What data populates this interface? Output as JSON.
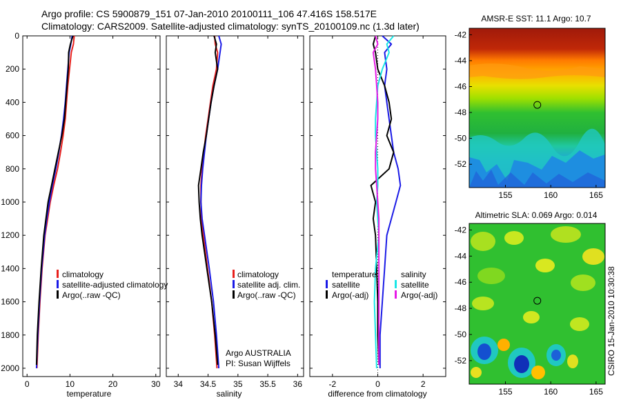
{
  "header": {
    "line1": "Argo profile: CS 5900879_151 07-Jan-2010 20100111_106 47.416S 158.517E",
    "line2": "Climatology: CARS2009. Satellite-adjusted climatology: synTS_20100109.nc (1.3d later)"
  },
  "side_note": "CSIRO 15-Jan-2010 10:30:38",
  "argo_note": {
    "line1": "Argo AUSTRALIA",
    "line2": "PI: Susan Wijffels"
  },
  "colors": {
    "climatology": "#e8201c",
    "satellite": "#1a1ae6",
    "argo": "#000000",
    "sat_salinity": "#19e6e6",
    "argo_salinity": "#e619e6"
  },
  "chart_data": [
    {
      "type": "line",
      "name": "temperature",
      "xlabel": "temperature",
      "xlim": [
        -1,
        31
      ],
      "ylim": [
        2050,
        0
      ],
      "xticks": [
        0,
        10,
        20,
        30
      ],
      "yticks": [
        0,
        200,
        400,
        600,
        800,
        1000,
        1200,
        1400,
        1600,
        1800,
        2000
      ],
      "legend": [
        "climatology",
        "satellite-adjusted climatology",
        "Argo(..raw -QC)"
      ],
      "series": [
        {
          "name": "climatology",
          "color": "#e8201c",
          "depth": [
            0,
            50,
            100,
            200,
            300,
            400,
            500,
            600,
            700,
            800,
            900,
            1000,
            1100,
            1200,
            1400,
            1600,
            1800,
            2000
          ],
          "values": [
            11.0,
            10.8,
            10.3,
            9.9,
            9.5,
            9.2,
            8.9,
            8.4,
            7.8,
            7.1,
            6.2,
            5.4,
            4.8,
            4.2,
            3.5,
            3.0,
            2.6,
            2.3
          ]
        },
        {
          "name": "satellite-adjusted climatology",
          "color": "#1a1ae6",
          "depth": [
            0,
            50,
            100,
            200,
            300,
            400,
            500,
            600,
            700,
            800,
            900,
            1000,
            1100,
            1200,
            1400,
            1600,
            1800,
            2000
          ],
          "values": [
            10.5,
            10.2,
            9.8,
            9.5,
            9.2,
            8.9,
            8.5,
            8.0,
            7.4,
            6.7,
            5.9,
            5.2,
            4.6,
            4.1,
            3.4,
            2.9,
            2.5,
            2.2
          ]
        },
        {
          "name": "Argo(..raw -QC)",
          "color": "#000000",
          "depth": [
            0,
            50,
            100,
            200,
            300,
            400,
            500,
            600,
            700,
            800,
            900,
            1000,
            1100,
            1200,
            1400,
            1600,
            1800,
            1980
          ],
          "values": [
            10.7,
            10.1,
            9.7,
            9.6,
            9.3,
            9.0,
            8.7,
            8.1,
            7.3,
            6.5,
            5.7,
            4.9,
            4.4,
            3.9,
            3.3,
            2.8,
            2.4,
            2.2
          ]
        }
      ]
    },
    {
      "type": "line",
      "name": "salinity",
      "xlabel": "salinity",
      "xlim": [
        33.8,
        36.1
      ],
      "ylim": [
        2050,
        0
      ],
      "xticks": [
        34,
        34.5,
        35,
        35.5,
        36
      ],
      "legend": [
        "climatology",
        "satellite adj. clim.",
        "Argo(..raw -QC)"
      ],
      "series": [
        {
          "name": "climatology",
          "color": "#e8201c",
          "depth": [
            0,
            50,
            100,
            200,
            300,
            400,
            500,
            600,
            700,
            800,
            900,
            1000,
            1100,
            1200,
            1400,
            1600,
            1800,
            2000
          ],
          "values": [
            34.61,
            34.62,
            34.66,
            34.64,
            34.58,
            34.54,
            34.5,
            34.46,
            34.43,
            34.4,
            34.38,
            34.38,
            34.39,
            34.42,
            34.49,
            34.56,
            34.61,
            34.65
          ]
        },
        {
          "name": "satellite adj. clim.",
          "color": "#1a1ae6",
          "depth": [
            0,
            50,
            100,
            200,
            300,
            400,
            500,
            600,
            700,
            800,
            900,
            1000,
            1100,
            1200,
            1400,
            1600,
            1800,
            2000
          ],
          "values": [
            34.68,
            34.72,
            34.7,
            34.66,
            34.6,
            34.55,
            34.51,
            34.47,
            34.44,
            34.41,
            34.39,
            34.38,
            34.4,
            34.44,
            34.52,
            34.59,
            34.64,
            34.68
          ]
        },
        {
          "name": "Argo(..raw -QC)",
          "color": "#000000",
          "depth": [
            0,
            50,
            100,
            200,
            300,
            400,
            500,
            600,
            700,
            800,
            900,
            1000,
            1100,
            1200,
            1400,
            1600,
            1800,
            1980
          ],
          "values": [
            34.6,
            34.64,
            34.62,
            34.66,
            34.6,
            34.55,
            34.51,
            34.47,
            34.42,
            34.38,
            34.34,
            34.35,
            34.37,
            34.4,
            34.48,
            34.56,
            34.62,
            34.66
          ]
        }
      ]
    },
    {
      "type": "line",
      "name": "difference",
      "xlabel": "difference from climatology",
      "xlim": [
        -3,
        3
      ],
      "ylim": [
        2050,
        0
      ],
      "xticks": [
        -2,
        0,
        2
      ],
      "legend_titles": [
        "temperature",
        "salinity"
      ],
      "legend": [
        "satellite",
        "Argo(-adj)",
        "satellite",
        "Argo(-adj)"
      ],
      "series": [
        {
          "name": "temperature satellite",
          "color": "#1a1ae6",
          "depth": [
            0,
            50,
            100,
            200,
            300,
            400,
            500,
            600,
            700,
            800,
            900,
            1000,
            1100,
            1200,
            1400,
            1600,
            1800,
            2000
          ],
          "values": [
            0.2,
            0.6,
            0.3,
            0.4,
            0.3,
            0.4,
            0.5,
            0.6,
            0.7,
            0.9,
            1.0,
            0.8,
            0.6,
            0.4,
            0.3,
            0.2,
            0.1,
            0.1
          ]
        },
        {
          "name": "temperature Argo(-adj)",
          "color": "#000000",
          "depth": [
            0,
            50,
            100,
            200,
            300,
            400,
            500,
            600,
            700,
            800,
            900,
            1000,
            1100,
            1200,
            1400,
            1600,
            1800,
            1980
          ],
          "values": [
            -0.1,
            -0.2,
            -0.1,
            0.0,
            0.3,
            0.5,
            0.6,
            0.4,
            0.7,
            0.5,
            -0.3,
            -0.1,
            -0.2,
            -0.1,
            -0.05,
            0.0,
            0.0,
            0.05
          ]
        },
        {
          "name": "salinity satellite",
          "color": "#19e6e6",
          "depth": [
            0,
            50,
            100,
            200,
            300,
            400,
            500,
            600,
            700,
            800,
            900,
            1000,
            1100,
            1200,
            1400,
            1600,
            1800,
            2000
          ],
          "values": [
            0.7,
            0.4,
            0.5,
            0.2,
            0.0,
            -0.05,
            -0.1,
            -0.1,
            -0.05,
            0.0,
            0.0,
            -0.05,
            0.0,
            0.05,
            -0.1,
            -0.15,
            -0.1,
            -0.05
          ]
        },
        {
          "name": "salinity Argo(-adj)",
          "color": "#e619e6",
          "depth": [
            0,
            50,
            100,
            200,
            300,
            400,
            500,
            600,
            700,
            800,
            900,
            1000,
            1100,
            1200,
            1400,
            1600,
            1800,
            1980
          ],
          "values": [
            -0.1,
            0.0,
            -0.2,
            -0.1,
            -0.05,
            0.0,
            0.0,
            -0.05,
            -0.1,
            -0.1,
            -0.05,
            0.0,
            0.05,
            0.05,
            0.05,
            0.05,
            0.05,
            0.05
          ]
        }
      ]
    },
    {
      "type": "heatmap",
      "name": "sst",
      "title": "AMSR-E SST: 11.1  Argo: 10.7",
      "xlim": [
        151,
        166
      ],
      "ylim": [
        -53.8,
        -41.5
      ],
      "xticks": [
        155,
        160,
        165
      ],
      "yticks": [
        -42,
        -44,
        -46,
        -48,
        -50,
        -52
      ],
      "marker": {
        "lon": 158.517,
        "lat": -47.416
      }
    },
    {
      "type": "heatmap",
      "name": "sla",
      "title": "Altimetric SLA: 0.069  Argo: 0.014",
      "xlim": [
        151,
        166
      ],
      "ylim": [
        -53.8,
        -41.5
      ],
      "xticks": [
        155,
        160,
        165
      ],
      "yticks": [
        -42,
        -44,
        -46,
        -48,
        -50,
        -52
      ],
      "marker": {
        "lon": 158.517,
        "lat": -47.416
      }
    }
  ]
}
